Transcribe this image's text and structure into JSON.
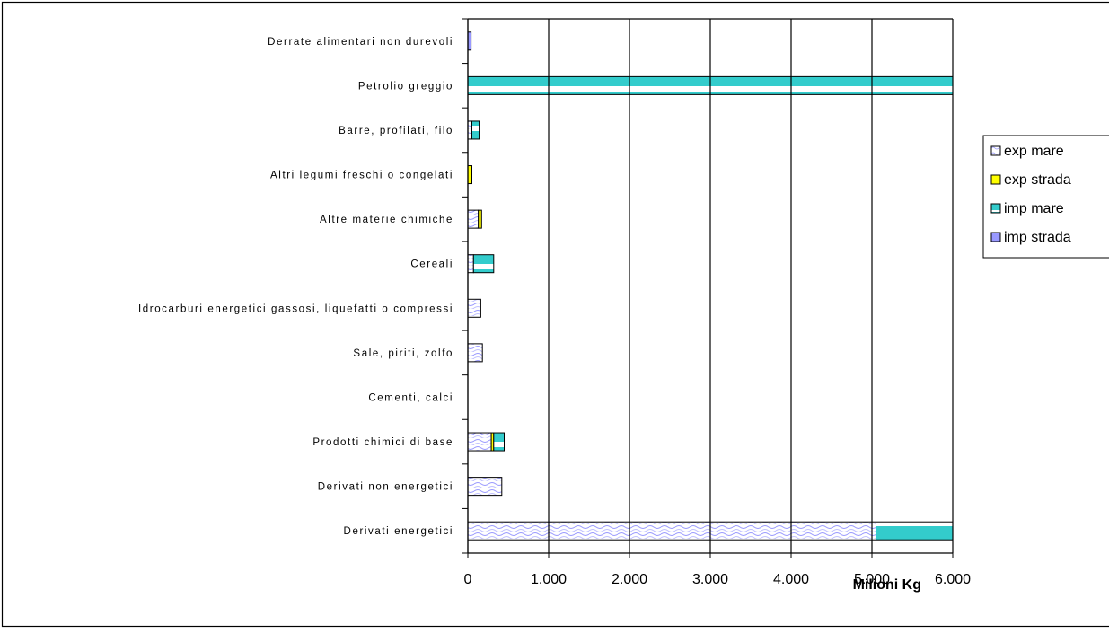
{
  "chart_data": {
    "type": "bar",
    "orientation": "horizontal",
    "stacked": true,
    "categories": [
      "Derrate alimentari non durevoli",
      "Petrolio greggio",
      "Barre, profilati, filo",
      "Altri legumi freschi o congelati",
      "Altre materie chimiche",
      "Cereali",
      "Idrocarburi energetici gassosi, liquefatti o compressi",
      "Sale, piriti, zolfo",
      "Cementi, calci",
      "Prodotti chimici di base",
      "Derivati non energetici",
      "Derivati energetici"
    ],
    "series": [
      {
        "name": "exp mare",
        "color": "#9999ff",
        "values": [
          0,
          0,
          40,
          0,
          130,
          70,
          160,
          180,
          0,
          290,
          420,
          5050
        ]
      },
      {
        "name": "exp strada",
        "color": "#ffff00",
        "values": [
          0,
          0,
          10,
          50,
          40,
          0,
          0,
          0,
          0,
          30,
          0,
          0
        ]
      },
      {
        "name": "imp mare",
        "color": "#33cccc",
        "values": [
          0,
          6000,
          90,
          0,
          0,
          250,
          0,
          0,
          0,
          130,
          0,
          950
        ]
      },
      {
        "name": "imp strada",
        "color": "#9999ff",
        "values": [
          40,
          0,
          0,
          0,
          0,
          0,
          0,
          0,
          0,
          0,
          0,
          0
        ]
      }
    ],
    "xlim": [
      0,
      6000
    ],
    "xticks": [
      "0",
      "1.000",
      "2.000",
      "3.000",
      "4.000",
      "5.000",
      "6.000"
    ],
    "xlabel": "Milioni Kg",
    "ylabel": "",
    "title": "",
    "grid": "vertical",
    "legend_position": "right"
  }
}
